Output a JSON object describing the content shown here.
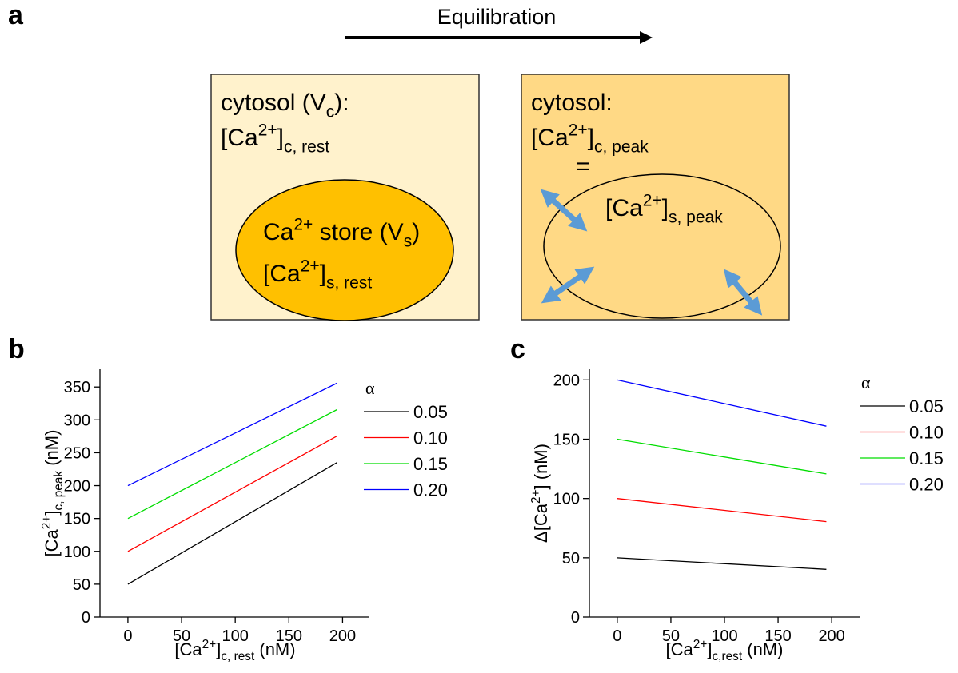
{
  "diagram": {
    "panel_label": "a",
    "title": "Equilibration",
    "left": {
      "cytosol": [
        "cytosol (V",
        "c",
        "):"
      ],
      "conc": [
        "[Ca",
        "2+",
        "]",
        "c, rest"
      ],
      "store": [
        "Ca",
        "2+",
        " store (V",
        "s",
        ")"
      ],
      "store_conc": [
        "[Ca",
        "2+",
        "]",
        "s, rest"
      ]
    },
    "right": {
      "cytosol": [
        "cytosol:"
      ],
      "conc": [
        "[Ca",
        "2+",
        "]",
        "c, peak"
      ],
      "equals": [
        "="
      ],
      "store_conc": [
        "[Ca",
        "2+",
        "]",
        "s, peak"
      ]
    }
  },
  "chart_data": [
    {
      "type": "line",
      "panel_label": "b",
      "xlabel": [
        "[Ca",
        "2+",
        "]",
        "c, rest",
        " (nM)"
      ],
      "ylabel": [
        "[Ca",
        "2+",
        "]",
        "c, peak",
        " (nM)"
      ],
      "x": [
        0,
        195
      ],
      "xlim": [
        -26,
        225
      ],
      "xticks": [
        0,
        50,
        100,
        150,
        200
      ],
      "ylim": [
        0,
        377
      ],
      "yticks": [
        0,
        50,
        100,
        150,
        200,
        250,
        300,
        350
      ],
      "legend_title": "α",
      "series": [
        {
          "name": "0.05",
          "color": "#000000",
          "values": [
            50,
            235.25
          ]
        },
        {
          "name": "0.10",
          "color": "#ff0000",
          "values": [
            100,
            275.5
          ]
        },
        {
          "name": "0.15",
          "color": "#00dd00",
          "values": [
            150,
            315.75
          ]
        },
        {
          "name": "0.20",
          "color": "#0000ff",
          "values": [
            200,
            356
          ]
        }
      ]
    },
    {
      "type": "line",
      "panel_label": "c",
      "xlabel": [
        "[Ca",
        "2+",
        "]",
        "c,rest",
        " (nM)"
      ],
      "ylabel": [
        "Δ[Ca",
        "2+",
        "] (nM)"
      ],
      "x": [
        0,
        195
      ],
      "xlim": [
        -26,
        226
      ],
      "xticks": [
        0,
        50,
        100,
        150,
        200
      ],
      "ylim": [
        0,
        209
      ],
      "yticks": [
        0,
        50,
        100,
        150,
        200
      ],
      "legend_title": "α",
      "series": [
        {
          "name": "0.05",
          "color": "#000000",
          "values": [
            50,
            40.25
          ]
        },
        {
          "name": "0.10",
          "color": "#ff0000",
          "values": [
            100,
            80.5
          ]
        },
        {
          "name": "0.15",
          "color": "#00dd00",
          "values": [
            150,
            120.75
          ]
        },
        {
          "name": "0.20",
          "color": "#0000ff",
          "values": [
            200,
            161
          ]
        }
      ]
    }
  ]
}
